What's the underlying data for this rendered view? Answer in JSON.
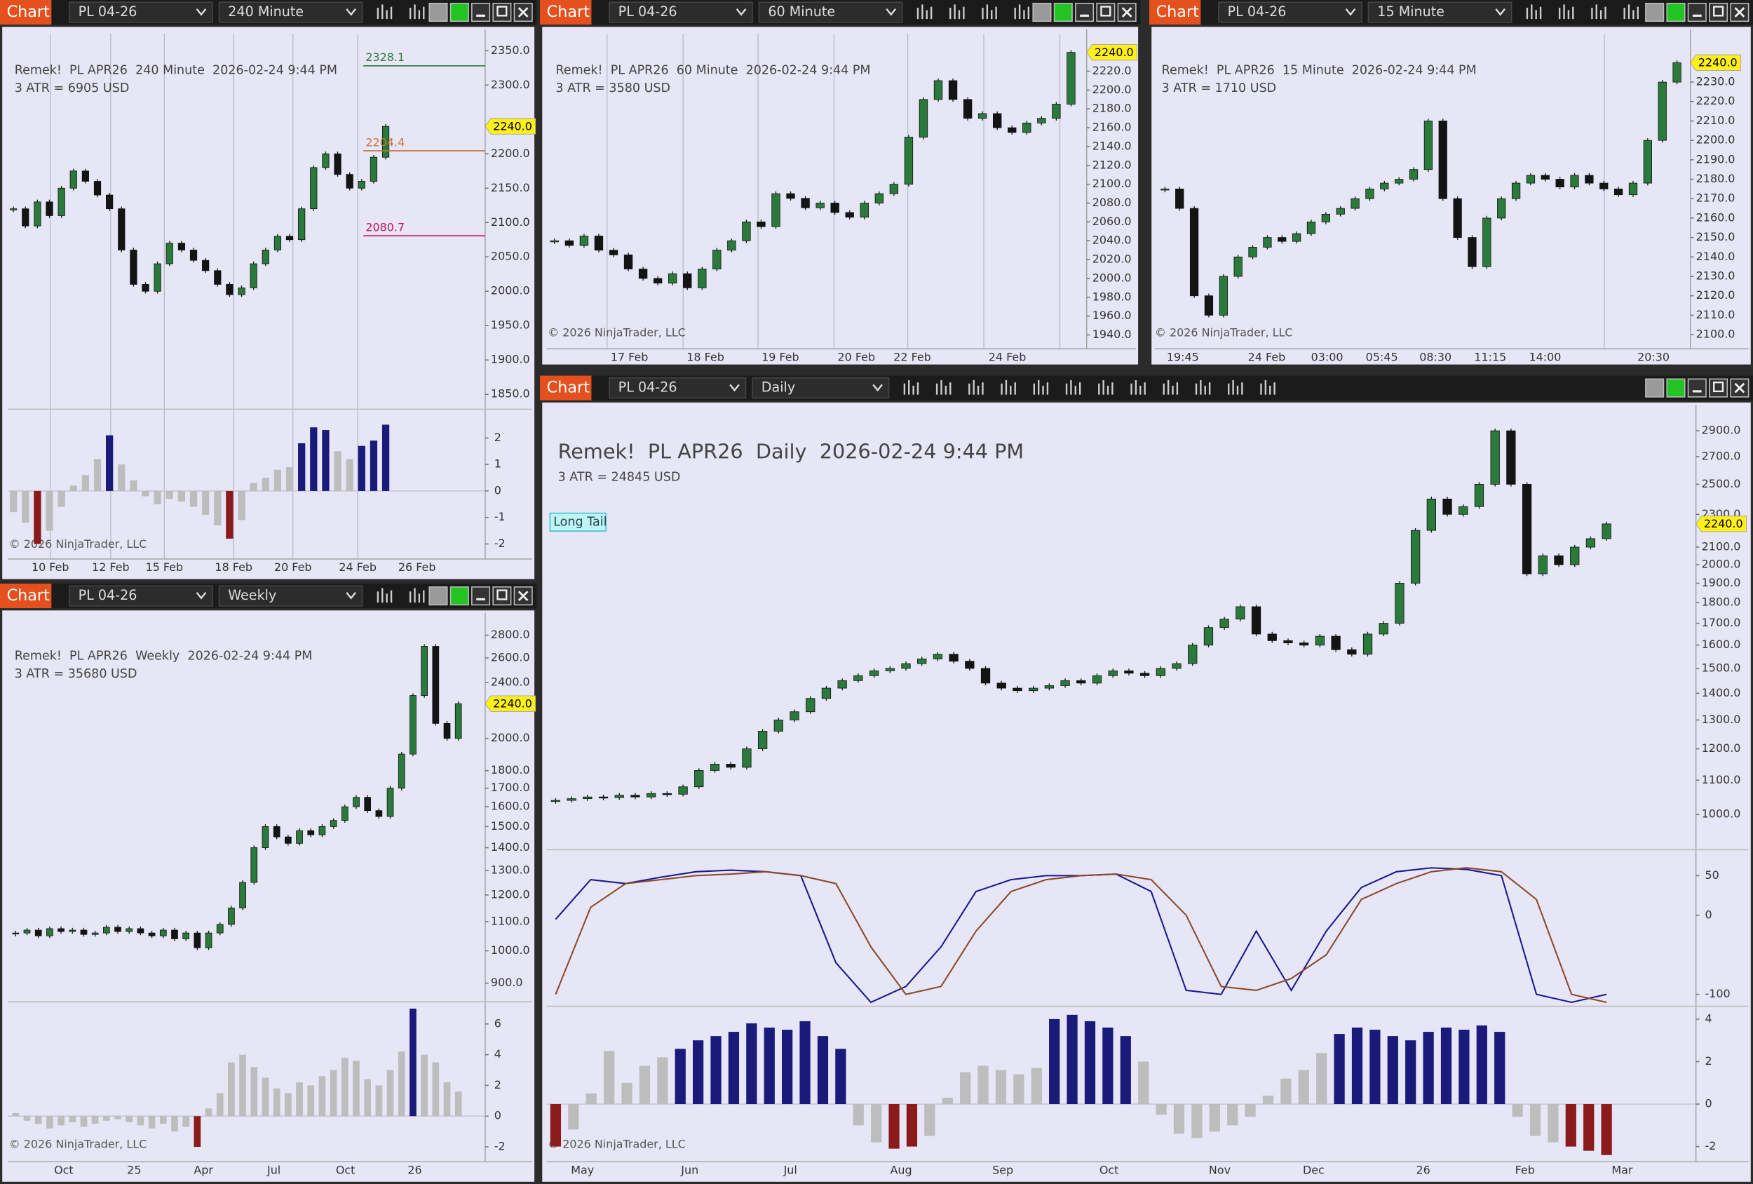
{
  "candle_colors": {
    "up": "#2a7a3b",
    "down": "#141414"
  },
  "windows": [
    {
      "tab": "Chart",
      "instrument": "PL 04-26",
      "interval": "240 Minute",
      "title": "Remek!  PL APR26  240 Minute  2026-02-24 9:44 PM",
      "atr": "3 ATR = 6905 USD",
      "copyright": "© 2026 NinjaTrader, LLC",
      "time_labels": [
        "10 Feb",
        "12 Feb",
        "15 Feb",
        "18 Feb",
        "20 Feb",
        "24 Feb",
        "26 Feb"
      ],
      "price": {
        "log_scale": false,
        "ylim": [
          1830,
          2375
        ],
        "yticks": [
          {
            "value": 2350,
            "label": "2350.0"
          },
          {
            "value": 2300,
            "label": "2300.0"
          },
          {
            "value": 2200,
            "label": "2200.0"
          },
          {
            "value": 2150,
            "label": "2150.0"
          },
          {
            "value": 2100,
            "label": "2100.0"
          },
          {
            "value": 2050,
            "label": "2050.0"
          },
          {
            "value": 2000,
            "label": "2000.0"
          },
          {
            "value": 1950,
            "label": "1950.0"
          },
          {
            "value": 1900,
            "label": "1900.0"
          },
          {
            "value": 1850,
            "label": "1850.0"
          }
        ],
        "tag": {
          "value": 2240,
          "label": "2240.0"
        },
        "closes": [
          2120,
          2095,
          2130,
          2110,
          2150,
          2175,
          2160,
          2140,
          2120,
          2060,
          2010,
          2000,
          2040,
          2070,
          2060,
          2045,
          2030,
          2010,
          1995,
          2005,
          2040,
          2060,
          2080,
          2075,
          2120,
          2180,
          2200,
          2170,
          2150,
          2160,
          2195,
          2240
        ],
        "levels": [
          {
            "value": 2328.1,
            "color": "#2e7d32"
          },
          {
            "value": 2204.4,
            "color": "#c8743a"
          },
          {
            "value": 2080.7,
            "color": "#c2185b"
          }
        ]
      },
      "osc": {
        "ylim": [
          -2.4,
          3
        ],
        "yticks": [
          2,
          1,
          0,
          -1,
          -2
        ],
        "values": [
          -0.8,
          -1.2,
          -2.0,
          -1.5,
          -0.6,
          0.2,
          0.6,
          1.2,
          2.1,
          1.0,
          0.4,
          -0.2,
          -0.5,
          -0.3,
          -0.4,
          -0.6,
          -0.9,
          -1.3,
          -1.8,
          -1.1,
          0.3,
          0.5,
          0.8,
          0.9,
          1.8,
          2.4,
          2.3,
          1.5,
          1.2,
          1.7,
          1.9,
          2.5
        ]
      }
    },
    {
      "tab": "Chart",
      "instrument": "PL 04-26",
      "interval": "60 Minute",
      "title": "Remek!  PL APR26  60 Minute  2026-02-24 9:44 PM",
      "atr": "3 ATR = 3580 USD",
      "copyright": "© 2026 NinjaTrader, LLC",
      "time_labels": [
        "17 Feb",
        "18 Feb",
        "19 Feb",
        "20 Feb",
        "22 Feb",
        "24 Feb"
      ],
      "price": {
        "log_scale": false,
        "ylim": [
          1930,
          2260
        ],
        "yticks": [
          {
            "value": 2220,
            "label": "2220.0"
          },
          {
            "value": 2200,
            "label": "2200.0"
          },
          {
            "value": 2180,
            "label": "2180.0"
          },
          {
            "value": 2160,
            "label": "2160.0"
          },
          {
            "value": 2140,
            "label": "2140.0"
          },
          {
            "value": 2120,
            "label": "2120.0"
          },
          {
            "value": 2100,
            "label": "2100.0"
          },
          {
            "value": 2080,
            "label": "2080.0"
          },
          {
            "value": 2060,
            "label": "2060.0"
          },
          {
            "value": 2040,
            "label": "2040.0"
          },
          {
            "value": 2020,
            "label": "2020.0"
          },
          {
            "value": 2000,
            "label": "2000.0"
          },
          {
            "value": 1980,
            "label": "1980.0"
          },
          {
            "value": 1960,
            "label": "1960.0"
          },
          {
            "value": 1940,
            "label": "1940.0"
          }
        ],
        "tag": {
          "value": 2240,
          "label": "2240.0"
        },
        "closes": [
          2040,
          2035,
          2045,
          2030,
          2025,
          2010,
          2000,
          1995,
          2005,
          1990,
          2010,
          2030,
          2040,
          2060,
          2055,
          2090,
          2085,
          2075,
          2080,
          2070,
          2065,
          2080,
          2090,
          2100,
          2150,
          2190,
          2210,
          2190,
          2170,
          2175,
          2160,
          2155,
          2165,
          2170,
          2185,
          2240
        ]
      }
    },
    {
      "tab": "Chart",
      "instrument": "PL 04-26",
      "interval": "15 Minute",
      "title": "Remek!  PL APR26  15 Minute  2026-02-24 9:44 PM",
      "atr": "3 ATR = 1710 USD",
      "copyright": "© 2026 NinjaTrader, LLC",
      "time_labels": [
        "19:45",
        "24 Feb",
        "03:00",
        "05:45",
        "08:30",
        "11:15",
        "14:00",
        "20:30"
      ],
      "price": {
        "log_scale": false,
        "ylim": [
          2095,
          2255
        ],
        "yticks": [
          {
            "value": 2230,
            "label": "2230.0"
          },
          {
            "value": 2220,
            "label": "2220.0"
          },
          {
            "value": 2210,
            "label": "2210.0"
          },
          {
            "value": 2200,
            "label": "2200.0"
          },
          {
            "value": 2190,
            "label": "2190.0"
          },
          {
            "value": 2180,
            "label": "2180.0"
          },
          {
            "value": 2170,
            "label": "2170.0"
          },
          {
            "value": 2160,
            "label": "2160.0"
          },
          {
            "value": 2150,
            "label": "2150.0"
          },
          {
            "value": 2140,
            "label": "2140.0"
          },
          {
            "value": 2130,
            "label": "2130.0"
          },
          {
            "value": 2120,
            "label": "2120.0"
          },
          {
            "value": 2110,
            "label": "2110.0"
          },
          {
            "value": 2100,
            "label": "2100.0"
          }
        ],
        "tag": {
          "value": 2240,
          "label": "2240.0"
        },
        "closes": [
          2175,
          2165,
          2120,
          2110,
          2130,
          2140,
          2145,
          2150,
          2148,
          2152,
          2158,
          2162,
          2165,
          2170,
          2175,
          2178,
          2180,
          2185,
          2210,
          2170,
          2150,
          2135,
          2160,
          2170,
          2178,
          2182,
          2180,
          2176,
          2182,
          2178,
          2175,
          2172,
          2178,
          2200,
          2230,
          2240
        ]
      }
    },
    {
      "tab": "Chart",
      "instrument": "PL 04-26",
      "interval": "Weekly",
      "title": "Remek!  PL APR26  Weekly  2026-02-24 9:44 PM",
      "atr": "3 ATR = 35680 USD",
      "copyright": "© 2026 NinjaTrader, LLC",
      "time_labels": [
        "Oct",
        "25",
        "Apr",
        "Jul",
        "Oct",
        "26"
      ],
      "price": {
        "log_scale": true,
        "ylim": [
          850,
          2970
        ],
        "yticks": [
          {
            "value": 2800,
            "label": "2800.0"
          },
          {
            "value": 2600,
            "label": "2600.0"
          },
          {
            "value": 2400,
            "label": "2400.0"
          },
          {
            "value": 2000,
            "label": "2000.0"
          },
          {
            "value": 1800,
            "label": "1800.0"
          },
          {
            "value": 1700,
            "label": "1700.0"
          },
          {
            "value": 1600,
            "label": "1600.0"
          },
          {
            "value": 1500,
            "label": "1500.0"
          },
          {
            "value": 1400,
            "label": "1400.0"
          },
          {
            "value": 1300,
            "label": "1300.0"
          },
          {
            "value": 1200,
            "label": "1200.0"
          },
          {
            "value": 1100,
            "label": "1100.0"
          },
          {
            "value": 1000,
            "label": "1000.0"
          },
          {
            "value": 900,
            "label": "900.0"
          }
        ],
        "tag": {
          "value": 2240,
          "label": "2240.0"
        },
        "closes": [
          1060,
          1070,
          1050,
          1075,
          1065,
          1070,
          1055,
          1060,
          1080,
          1065,
          1075,
          1060,
          1050,
          1070,
          1040,
          1060,
          1010,
          1060,
          1090,
          1150,
          1250,
          1400,
          1500,
          1450,
          1420,
          1480,
          1460,
          1500,
          1530,
          1600,
          1650,
          1580,
          1550,
          1700,
          1900,
          2300,
          2700,
          2100,
          2000,
          2240
        ]
      },
      "osc": {
        "ylim": [
          -2.6,
          7.3
        ],
        "yticks": [
          6,
          4,
          2,
          0,
          -2
        ],
        "values": [
          0.2,
          -0.3,
          -0.5,
          -0.8,
          -0.6,
          -0.4,
          -0.7,
          -0.5,
          -0.3,
          -0.2,
          -0.4,
          -0.6,
          -0.8,
          -0.5,
          -1.0,
          -0.7,
          -2.0,
          0.5,
          1.5,
          3.5,
          4.0,
          3.2,
          2.5,
          1.8,
          1.5,
          2.2,
          2.0,
          2.6,
          3.0,
          3.8,
          3.6,
          2.4,
          2.0,
          3.0,
          4.2,
          7.0,
          4.0,
          3.5,
          2.2,
          1.6
        ]
      }
    },
    {
      "tab": "Chart",
      "instrument": "PL 04-26",
      "interval": "Daily",
      "title": "Remek!  PL APR26  Daily  2026-02-24 9:44 PM",
      "atr": "3 ATR = 24845 USD",
      "copyright": "© 2026 NinjaTrader, LLC",
      "badge": "Long Tail",
      "time_labels": [
        "May",
        "Jun",
        "Jul",
        "Aug",
        "Sep",
        "Oct",
        "Nov",
        "Dec",
        "26",
        "Feb",
        "Mar"
      ],
      "price": {
        "log_scale": true,
        "ylim": [
          907,
          3060
        ],
        "yticks": [
          {
            "value": 2900,
            "label": "2900.0"
          },
          {
            "value": 2700,
            "label": "2700.0"
          },
          {
            "value": 2500,
            "label": "2500.0"
          },
          {
            "value": 2300,
            "label": "2300.0"
          },
          {
            "value": 2100,
            "label": "2100.0"
          },
          {
            "value": 2000,
            "label": "2000.0"
          },
          {
            "value": 1900,
            "label": "1900.0"
          },
          {
            "value": 1800,
            "label": "1800.0"
          },
          {
            "value": 1700,
            "label": "1700.0"
          },
          {
            "value": 1600,
            "label": "1600.0"
          },
          {
            "value": 1500,
            "label": "1500.0"
          },
          {
            "value": 1400,
            "label": "1400.0"
          },
          {
            "value": 1300,
            "label": "1300.0"
          },
          {
            "value": 1200,
            "label": "1200.0"
          },
          {
            "value": 1100,
            "label": "1100.0"
          },
          {
            "value": 1000,
            "label": "1000.0"
          }
        ],
        "tag": {
          "value": 2240,
          "label": "2240.0"
        },
        "closes": [
          1040,
          1045,
          1050,
          1048,
          1055,
          1050,
          1060,
          1058,
          1080,
          1130,
          1150,
          1140,
          1200,
          1260,
          1300,
          1330,
          1380,
          1420,
          1450,
          1470,
          1490,
          1500,
          1520,
          1540,
          1560,
          1530,
          1500,
          1440,
          1420,
          1410,
          1420,
          1430,
          1450,
          1440,
          1470,
          1490,
          1480,
          1470,
          1500,
          1520,
          1600,
          1680,
          1720,
          1780,
          1650,
          1620,
          1610,
          1600,
          1640,
          1580,
          1560,
          1650,
          1700,
          1900,
          2200,
          2400,
          2300,
          2350,
          2500,
          2900,
          2500,
          1950,
          2050,
          2000,
          2100,
          2150,
          2240
        ]
      },
      "lines": {
        "ylim": [
          -115,
          80
        ],
        "yticks": [
          50,
          0,
          -100
        ],
        "series": [
          {
            "color": "#1a1a8c",
            "values": [
              -5,
              45,
              40,
              48,
              55,
              57,
              55,
              50,
              -60,
              -110,
              -90,
              -40,
              30,
              45,
              50,
              50,
              52,
              30,
              -95,
              -100,
              -20,
              -95,
              -20,
              35,
              55,
              60,
              58,
              50,
              -100,
              -110,
              -100
            ]
          },
          {
            "color": "#8b4a2a",
            "values": [
              -100,
              10,
              40,
              45,
              50,
              52,
              55,
              50,
              40,
              -40,
              -100,
              -90,
              -20,
              30,
              45,
              50,
              52,
              45,
              0,
              -90,
              -95,
              -80,
              -50,
              20,
              40,
              55,
              60,
              55,
              20,
              -100,
              -110
            ]
          }
        ]
      },
      "osc": {
        "ylim": [
          -2.5,
          4.5
        ],
        "yticks": [
          4,
          2,
          0,
          -2
        ],
        "values": [
          -2.0,
          -1.2,
          0.5,
          2.5,
          1.0,
          1.8,
          2.2,
          2.6,
          3.0,
          3.2,
          3.4,
          3.8,
          3.6,
          3.5,
          3.9,
          3.2,
          2.6,
          -1.0,
          -1.8,
          -2.1,
          -2.0,
          -1.5,
          0.3,
          1.5,
          1.8,
          1.6,
          1.4,
          1.7,
          4.0,
          4.2,
          3.9,
          3.6,
          3.2,
          2.0,
          -0.5,
          -1.4,
          -1.6,
          -1.3,
          -1.0,
          -0.6,
          0.4,
          1.2,
          1.6,
          2.4,
          3.3,
          3.6,
          3.5,
          3.2,
          3.0,
          3.4,
          3.6,
          3.5,
          3.7,
          3.4,
          -0.6,
          -1.5,
          -1.8,
          -2.0,
          -2.2,
          -2.4
        ]
      }
    }
  ]
}
